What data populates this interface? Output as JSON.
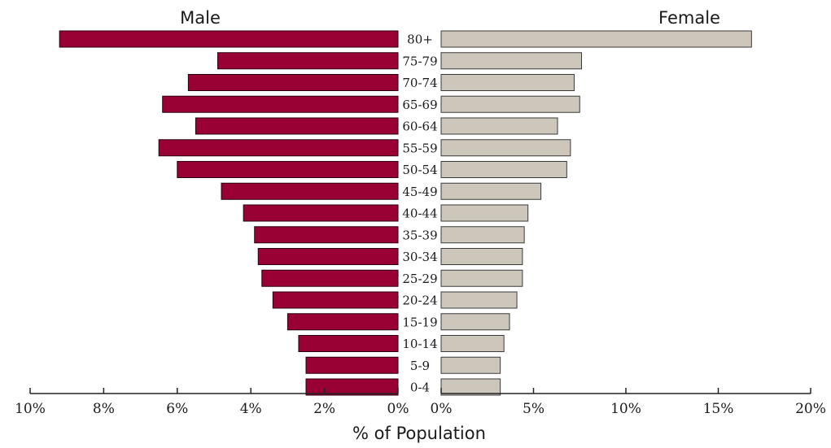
{
  "chart_data": {
    "type": "bar",
    "orientation": "horizontal",
    "layout": "population-pyramid",
    "categories": [
      "80+",
      "75-79",
      "70-74",
      "65-69",
      "60-64",
      "55-59",
      "50-54",
      "45-49",
      "40-44",
      "35-39",
      "30-34",
      "25-29",
      "20-24",
      "15-19",
      "10-14",
      "5-9",
      "0-4"
    ],
    "series": [
      {
        "name": "Male",
        "color": "#990033",
        "values": [
          9.2,
          4.9,
          5.7,
          6.4,
          5.5,
          6.5,
          6.0,
          4.8,
          4.2,
          3.9,
          3.8,
          3.7,
          3.4,
          3.0,
          2.7,
          2.5,
          2.5
        ]
      },
      {
        "name": "Female",
        "color": "#ccc6bb",
        "values": [
          16.8,
          7.6,
          7.2,
          7.5,
          6.3,
          7.0,
          6.8,
          5.4,
          4.7,
          4.5,
          4.4,
          4.4,
          4.1,
          3.7,
          3.4,
          3.2,
          3.2
        ]
      }
    ],
    "male_axis": {
      "range": [
        10,
        0
      ],
      "ticks": [
        "10%",
        "8%",
        "6%",
        "4%",
        "2%",
        "0%"
      ]
    },
    "female_axis": {
      "range": [
        0,
        20
      ],
      "ticks": [
        "0%",
        "5%",
        "10%",
        "15%",
        "20%"
      ]
    },
    "xlabel": "% of Population",
    "ylabel": "",
    "grid": false,
    "legend": "none"
  }
}
